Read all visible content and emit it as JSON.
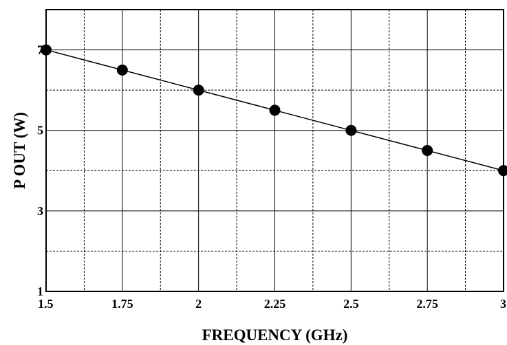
{
  "chart_data": {
    "type": "line",
    "title": "",
    "xlabel": "FREQUENCY (GHz)",
    "ylabel": "P OUT (W)",
    "xlim": [
      1.5,
      3
    ],
    "ylim": [
      1,
      8
    ],
    "x_ticks": [
      1.5,
      1.75,
      2,
      2.25,
      2.5,
      2.75,
      3
    ],
    "x_tick_labels": [
      "1.5",
      "1.75",
      "2",
      "2.25",
      "2.5",
      "2.75",
      "3"
    ],
    "y_ticks": [
      1,
      3,
      5,
      7
    ],
    "y_tick_labels": [
      "1",
      "3",
      "5",
      "7"
    ],
    "grid": true,
    "legend": "none",
    "series": [
      {
        "x": [
          1.5,
          1.75,
          2,
          2.25,
          2.5,
          2.75,
          3
        ],
        "y": [
          7,
          6.5,
          6,
          5.5,
          5,
          4.5,
          4
        ],
        "color": "#000000",
        "marker": "circle"
      }
    ]
  }
}
